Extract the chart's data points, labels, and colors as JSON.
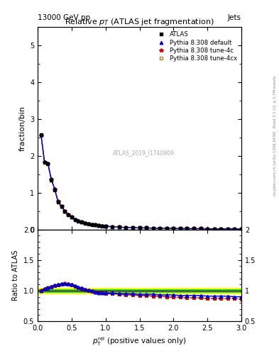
{
  "title": "Relative $p_T$ (ATLAS jet fragmentation)",
  "header_left": "13000 GeV pp",
  "header_right": "Jets",
  "ylabel_main": "fraction/bin",
  "ylabel_ratio": "Ratio to ATLAS",
  "watermark": "ATLAS_2019_I1740909",
  "ylim_main": [
    0.0,
    5.5
  ],
  "ylim_ratio": [
    0.5,
    2.0
  ],
  "xlim": [
    0.0,
    3.0
  ],
  "x_main": [
    0.05,
    0.1,
    0.15,
    0.2,
    0.25,
    0.3,
    0.35,
    0.4,
    0.45,
    0.5,
    0.55,
    0.6,
    0.65,
    0.7,
    0.75,
    0.8,
    0.85,
    0.9,
    0.95,
    1.0,
    1.1,
    1.2,
    1.3,
    1.4,
    1.5,
    1.6,
    1.7,
    1.8,
    1.9,
    2.0,
    2.1,
    2.2,
    2.3,
    2.4,
    2.5,
    2.6,
    2.7,
    2.8,
    2.9,
    3.0
  ],
  "y_atlas": [
    2.57,
    1.82,
    1.78,
    1.35,
    1.08,
    0.75,
    0.62,
    0.49,
    0.4,
    0.33,
    0.27,
    0.23,
    0.2,
    0.17,
    0.15,
    0.13,
    0.12,
    0.1,
    0.09,
    0.08,
    0.07,
    0.06,
    0.05,
    0.05,
    0.04,
    0.04,
    0.03,
    0.03,
    0.03,
    0.02,
    0.02,
    0.02,
    0.02,
    0.02,
    0.01,
    0.01,
    0.01,
    0.01,
    0.01,
    0.01
  ],
  "y_default": [
    2.57,
    1.84,
    1.8,
    1.37,
    1.1,
    0.76,
    0.63,
    0.5,
    0.41,
    0.34,
    0.28,
    0.24,
    0.21,
    0.18,
    0.16,
    0.14,
    0.12,
    0.11,
    0.1,
    0.09,
    0.07,
    0.06,
    0.05,
    0.05,
    0.04,
    0.04,
    0.03,
    0.03,
    0.03,
    0.03,
    0.02,
    0.02,
    0.02,
    0.02,
    0.01,
    0.01,
    0.01,
    0.01,
    0.01,
    0.01
  ],
  "y_4c": [
    2.56,
    1.83,
    1.79,
    1.36,
    1.09,
    0.76,
    0.62,
    0.5,
    0.4,
    0.33,
    0.27,
    0.23,
    0.2,
    0.17,
    0.15,
    0.13,
    0.12,
    0.1,
    0.09,
    0.08,
    0.07,
    0.06,
    0.05,
    0.05,
    0.04,
    0.04,
    0.03,
    0.03,
    0.03,
    0.02,
    0.02,
    0.02,
    0.02,
    0.02,
    0.01,
    0.01,
    0.01,
    0.01,
    0.01,
    0.01
  ],
  "y_4cx": [
    2.56,
    1.83,
    1.79,
    1.36,
    1.09,
    0.76,
    0.62,
    0.5,
    0.4,
    0.33,
    0.27,
    0.23,
    0.2,
    0.17,
    0.15,
    0.13,
    0.12,
    0.1,
    0.09,
    0.08,
    0.07,
    0.06,
    0.05,
    0.05,
    0.04,
    0.04,
    0.03,
    0.03,
    0.03,
    0.02,
    0.02,
    0.02,
    0.02,
    0.02,
    0.01,
    0.01,
    0.01,
    0.01,
    0.01,
    0.01
  ],
  "ratio_default": [
    1.0,
    1.03,
    1.05,
    1.07,
    1.09,
    1.1,
    1.11,
    1.12,
    1.11,
    1.1,
    1.08,
    1.06,
    1.04,
    1.02,
    1.01,
    1.0,
    0.98,
    0.97,
    0.97,
    0.96,
    0.96,
    0.95,
    0.95,
    0.95,
    0.94,
    0.94,
    0.94,
    0.93,
    0.93,
    0.93,
    0.92,
    0.92,
    0.92,
    0.92,
    0.91,
    0.91,
    0.91,
    0.91,
    0.9,
    0.9
  ],
  "ratio_4c": [
    1.0,
    1.02,
    1.04,
    1.06,
    1.08,
    1.09,
    1.1,
    1.11,
    1.1,
    1.09,
    1.07,
    1.05,
    1.03,
    1.01,
    1.0,
    0.99,
    0.98,
    0.97,
    0.96,
    0.95,
    0.95,
    0.94,
    0.93,
    0.93,
    0.92,
    0.92,
    0.91,
    0.91,
    0.9,
    0.89,
    0.89,
    0.88,
    0.88,
    0.88,
    0.87,
    0.87,
    0.87,
    0.87,
    0.87,
    0.86
  ],
  "ratio_4cx": [
    1.0,
    1.02,
    1.04,
    1.06,
    1.08,
    1.09,
    1.1,
    1.11,
    1.1,
    1.09,
    1.07,
    1.05,
    1.03,
    1.01,
    1.0,
    0.99,
    0.98,
    0.97,
    0.96,
    0.95,
    0.95,
    0.94,
    0.93,
    0.93,
    0.92,
    0.92,
    0.91,
    0.91,
    0.9,
    0.89,
    0.89,
    0.88,
    0.88,
    0.88,
    0.87,
    0.87,
    0.87,
    0.87,
    0.87,
    0.86
  ],
  "color_atlas": "#000000",
  "color_default": "#0000cc",
  "color_4c": "#cc0000",
  "color_4cx": "#cc6600",
  "band_yellow": [
    0.95,
    1.05
  ],
  "band_green": [
    0.98,
    1.02
  ],
  "legend_labels": [
    "ATLAS",
    "Pythia 8.308 default",
    "Pythia 8.308 tune-4c",
    "Pythia 8.308 tune-4cx"
  ],
  "right_side_label1": "Rivet 3.1.10, >= 2.7M events",
  "right_side_label2": "mcplots.cern.ch [arXiv:1306.3436]"
}
